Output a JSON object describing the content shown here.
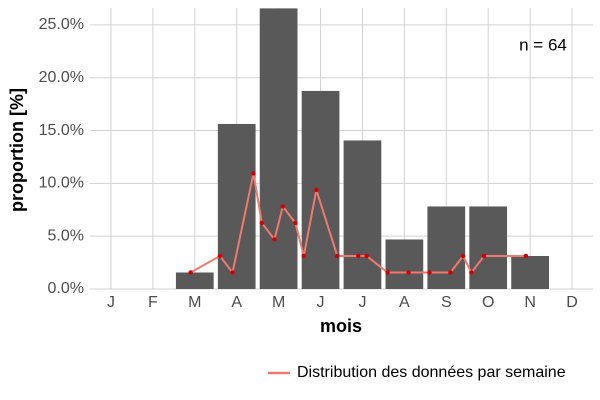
{
  "chart_data": {
    "type": "bar",
    "annotation": "n = 64",
    "x_label": "mois",
    "y_label": "proportion [%]",
    "categories": [
      "J",
      "F",
      "M",
      "A",
      "M",
      "J",
      "J",
      "A",
      "S",
      "O",
      "N",
      "D"
    ],
    "values": [
      0,
      0,
      1.5625,
      15.625,
      26.5625,
      18.75,
      14.0625,
      4.6875,
      7.8125,
      7.8125,
      3.125,
      0
    ],
    "color": "#595959",
    "ylim": [
      0,
      26.6
    ],
    "yticks": [
      {
        "value": 0,
        "label": "0.0%"
      },
      {
        "value": 5,
        "label": "5.0%"
      },
      {
        "value": 10,
        "label": "10.0%"
      },
      {
        "value": 15,
        "label": "15.0%"
      },
      {
        "value": 20,
        "label": "20.0%"
      },
      {
        "value": 25,
        "label": "25.0%"
      }
    ],
    "grid": true,
    "legend_position": "bottom-right",
    "overlay": {
      "type": "line",
      "name": "Distribution des données par semaine",
      "color": "#f0796d",
      "point_color": "#d40000",
      "xlim": [
        0.5,
        12.5
      ],
      "x": [
        2.9,
        3.6,
        3.9,
        4.4,
        4.6,
        4.9,
        5.1,
        5.4,
        5.6,
        5.9,
        6.4,
        6.9,
        7.1,
        7.6,
        8.1,
        8.6,
        9.1,
        9.4,
        9.6,
        9.9,
        10.9
      ],
      "values": [
        1.5625,
        3.125,
        1.5625,
        10.9375,
        6.25,
        4.6875,
        7.8125,
        6.25,
        3.125,
        9.375,
        3.125,
        3.125,
        3.125,
        1.5625,
        1.5625,
        1.5625,
        1.5625,
        3.125,
        1.5625,
        3.125,
        3.125
      ]
    }
  }
}
